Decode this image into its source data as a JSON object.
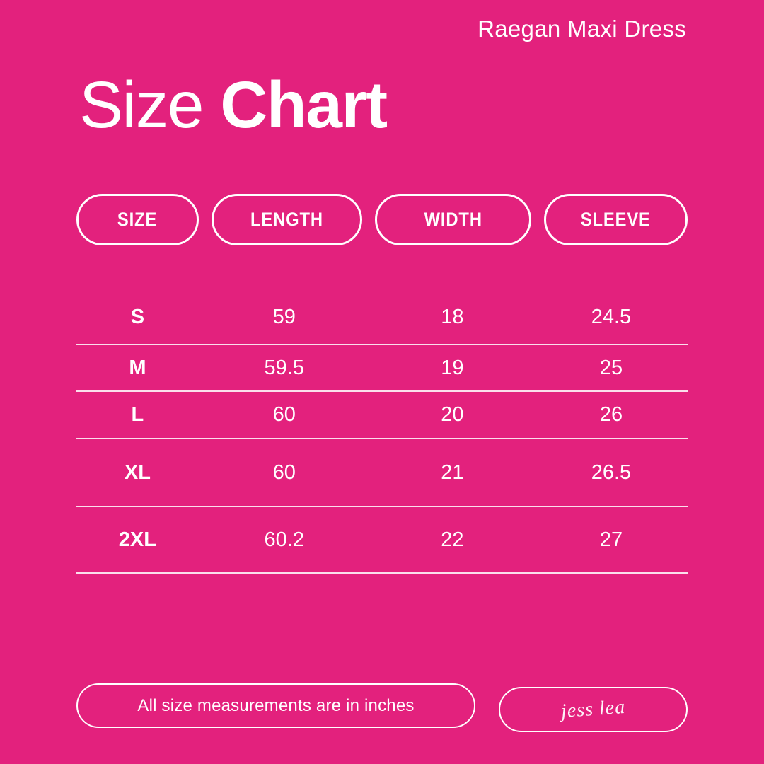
{
  "colors": {
    "background": "#e3217d",
    "text": "#ffffff",
    "divider": "rgba(255,255,255,.85)"
  },
  "header": {
    "product_name": "Raegan Maxi Dress",
    "title_regular": "Size",
    "title_bold": "Chart"
  },
  "table": {
    "columns": [
      "SIZE",
      "LENGTH",
      "WIDTH",
      "SLEEVE"
    ],
    "rows": [
      {
        "size": "S",
        "length": "59",
        "width": "18",
        "sleeve": "24.5"
      },
      {
        "size": "M",
        "length": "59.5",
        "width": "19",
        "sleeve": "25"
      },
      {
        "size": "L",
        "length": "60",
        "width": "20",
        "sleeve": "26"
      },
      {
        "size": "XL",
        "length": "60",
        "width": "21",
        "sleeve": "26.5"
      },
      {
        "size": "2XL",
        "length": "60.2",
        "width": "22",
        "sleeve": "27"
      }
    ]
  },
  "footer": {
    "note": "All size measurements are in inches",
    "brand_signature": "jess lea"
  },
  "chart_data": {
    "type": "table",
    "title": "Size Chart",
    "subtitle": "Raegan Maxi Dress",
    "columns": [
      "SIZE",
      "LENGTH",
      "WIDTH",
      "SLEEVE"
    ],
    "rows": [
      [
        "S",
        59,
        18,
        24.5
      ],
      [
        "M",
        59.5,
        19,
        25
      ],
      [
        "L",
        60,
        20,
        26
      ],
      [
        "XL",
        60,
        21,
        26.5
      ],
      [
        "2XL",
        60.2,
        22,
        27
      ]
    ],
    "units": "inches"
  }
}
